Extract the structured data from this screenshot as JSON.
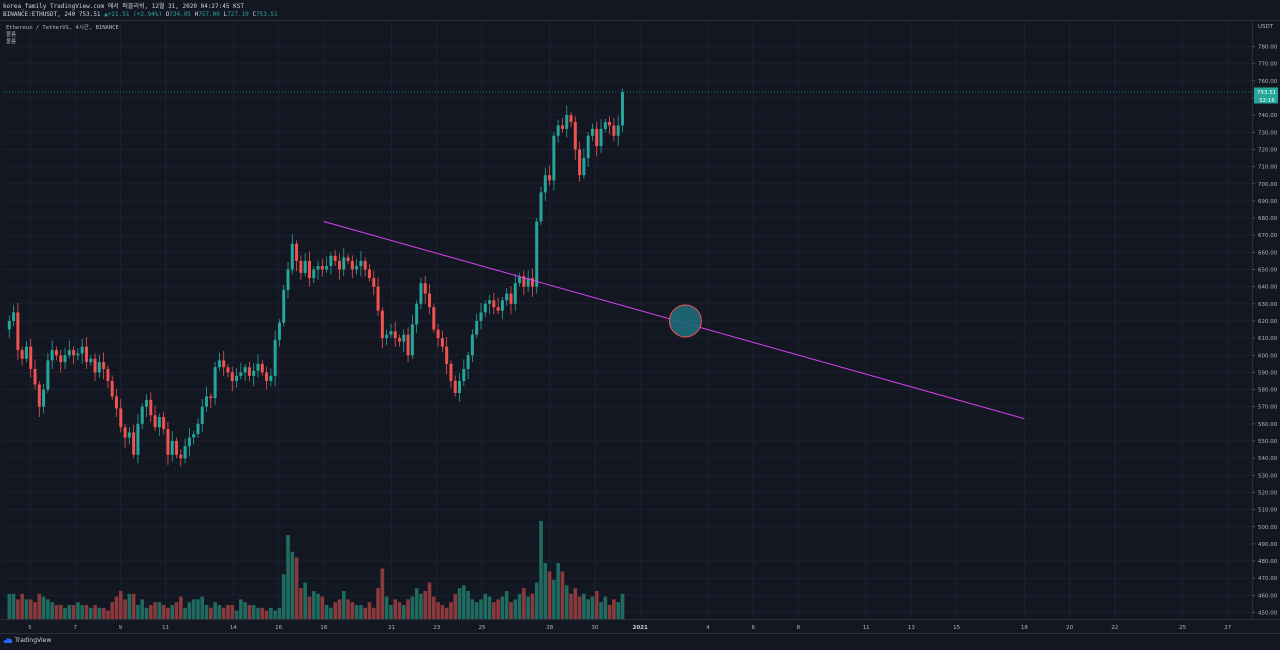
{
  "header": {
    "publisher_line": "korea_family TradingView.com 에서 퍼블리쉬, 12월 31, 2020 04:27:45 KST",
    "symbol_full": "BINANCE:ETHUSDT, 240",
    "last": "753.51",
    "change": "+21.51 (+2.94%)",
    "o_label": "O",
    "o_value": "734.05",
    "h_label": "H",
    "h_value": "757.00",
    "l_label": "L",
    "l_value": "727.10",
    "c_label": "C",
    "c_value": "753.51"
  },
  "legend": {
    "title": "Ethereum / TetherUS, 4시간, BINANCE",
    "line2": "볼륨",
    "line3": "볼륨"
  },
  "axis": {
    "currency": "USDT",
    "price_badge": "753.51",
    "countdown_badge": "32:16"
  },
  "footer": {
    "brand": "TradingView"
  },
  "colors": {
    "background": "#131722",
    "up": "#26a69a",
    "down": "#ef5350",
    "trendline": "#e040fb",
    "highlight": "#1e6a7a"
  },
  "chart_data": {
    "type": "candlestick",
    "interval": "4h",
    "ylim": [
      443,
      787
    ],
    "y_ticks": [
      450,
      460,
      470,
      480,
      490,
      500,
      510,
      520,
      530,
      540,
      550,
      560,
      570,
      580,
      590,
      600,
      610,
      620,
      630,
      640,
      650,
      660,
      670,
      680,
      690,
      700,
      710,
      720,
      730,
      740,
      750,
      760,
      770,
      780
    ],
    "x_ticks": [
      "5",
      "7",
      "9",
      "11",
      "14",
      "16",
      "18",
      "21",
      "23",
      "25",
      "28",
      "30",
      "2021",
      "4",
      "6",
      "8",
      "11",
      "13",
      "15",
      "18",
      "20",
      "22",
      "25",
      "27"
    ],
    "path_points": [
      [
        0,
        615
      ],
      [
        1,
        620
      ],
      [
        2,
        625
      ],
      [
        3,
        603
      ],
      [
        4,
        598
      ],
      [
        5,
        605
      ],
      [
        6,
        592
      ],
      [
        7,
        583
      ],
      [
        8,
        570
      ],
      [
        9,
        580
      ],
      [
        10,
        597
      ],
      [
        11,
        603
      ],
      [
        12,
        600
      ],
      [
        13,
        596
      ],
      [
        14,
        600
      ],
      [
        15,
        603
      ],
      [
        16,
        600
      ],
      [
        17,
        601
      ],
      [
        18,
        605
      ],
      [
        19,
        596
      ],
      [
        20,
        598
      ],
      [
        21,
        590
      ],
      [
        22,
        596
      ],
      [
        23,
        592
      ],
      [
        24,
        585
      ],
      [
        25,
        576
      ],
      [
        26,
        569
      ],
      [
        27,
        558
      ],
      [
        28,
        552
      ],
      [
        29,
        555
      ],
      [
        30,
        542
      ],
      [
        31,
        560
      ],
      [
        32,
        570
      ],
      [
        33,
        574
      ],
      [
        34,
        565
      ],
      [
        35,
        558
      ],
      [
        36,
        564
      ],
      [
        37,
        557
      ],
      [
        38,
        542
      ],
      [
        39,
        550
      ],
      [
        40,
        542
      ],
      [
        41,
        540
      ],
      [
        42,
        547
      ],
      [
        43,
        552
      ],
      [
        44,
        554
      ],
      [
        45,
        560
      ],
      [
        46,
        570
      ],
      [
        47,
        576
      ],
      [
        48,
        575
      ],
      [
        49,
        593
      ],
      [
        50,
        597
      ],
      [
        51,
        593
      ],
      [
        52,
        590
      ],
      [
        53,
        585
      ],
      [
        54,
        588
      ],
      [
        55,
        590
      ],
      [
        56,
        593
      ],
      [
        57,
        588
      ],
      [
        58,
        591
      ],
      [
        59,
        595
      ],
      [
        60,
        590
      ],
      [
        61,
        585
      ],
      [
        62,
        588
      ],
      [
        63,
        609
      ],
      [
        64,
        619
      ],
      [
        65,
        638
      ],
      [
        66,
        650
      ],
      [
        67,
        665
      ],
      [
        68,
        655
      ],
      [
        69,
        648
      ],
      [
        70,
        655
      ],
      [
        71,
        645
      ],
      [
        72,
        650
      ],
      [
        73,
        652
      ],
      [
        74,
        650
      ],
      [
        75,
        652
      ],
      [
        76,
        658
      ],
      [
        77,
        655
      ],
      [
        78,
        650
      ],
      [
        79,
        657
      ],
      [
        80,
        655
      ],
      [
        81,
        650
      ],
      [
        82,
        652
      ],
      [
        83,
        655
      ],
      [
        84,
        650
      ],
      [
        85,
        645
      ],
      [
        86,
        640
      ],
      [
        87,
        626
      ],
      [
        88,
        610
      ],
      [
        89,
        612
      ],
      [
        90,
        614
      ],
      [
        91,
        610
      ],
      [
        92,
        608
      ],
      [
        93,
        612
      ],
      [
        94,
        600
      ],
      [
        95,
        618
      ],
      [
        96,
        630
      ],
      [
        97,
        642
      ],
      [
        98,
        636
      ],
      [
        99,
        628
      ],
      [
        100,
        615
      ],
      [
        101,
        610
      ],
      [
        102,
        605
      ],
      [
        103,
        595
      ],
      [
        104,
        585
      ],
      [
        105,
        578
      ],
      [
        106,
        585
      ],
      [
        107,
        592
      ],
      [
        108,
        600
      ],
      [
        109,
        612
      ],
      [
        110,
        620
      ],
      [
        111,
        625
      ],
      [
        112,
        630
      ],
      [
        113,
        632
      ],
      [
        114,
        628
      ],
      [
        115,
        626
      ],
      [
        116,
        632
      ],
      [
        117,
        636
      ],
      [
        118,
        630
      ],
      [
        119,
        642
      ],
      [
        120,
        646
      ],
      [
        121,
        640
      ],
      [
        122,
        645
      ],
      [
        123,
        640
      ],
      [
        124,
        678
      ],
      [
        125,
        695
      ],
      [
        126,
        705
      ],
      [
        127,
        702
      ],
      [
        128,
        728
      ],
      [
        129,
        734
      ],
      [
        130,
        732
      ],
      [
        131,
        740
      ],
      [
        132,
        736
      ],
      [
        133,
        720
      ],
      [
        134,
        705
      ],
      [
        135,
        715
      ],
      [
        136,
        728
      ],
      [
        137,
        732
      ],
      [
        138,
        722
      ],
      [
        139,
        732
      ],
      [
        140,
        736
      ],
      [
        141,
        734
      ],
      [
        142,
        728
      ],
      [
        143,
        734
      ],
      [
        144,
        753.51
      ]
    ],
    "volume_scale": [
      0,
      50
    ],
    "volume": [
      9,
      9,
      7,
      9,
      7,
      7,
      6,
      9,
      8,
      7,
      6,
      5,
      5,
      4,
      5,
      5,
      6,
      5,
      5,
      4,
      5,
      4,
      4,
      3,
      6,
      8,
      10,
      7,
      9,
      9,
      5,
      7,
      4,
      5,
      6,
      6,
      5,
      4,
      5,
      6,
      8,
      4,
      6,
      7,
      7,
      8,
      5,
      4,
      6,
      5,
      4,
      5,
      5,
      3,
      7,
      6,
      5,
      5,
      4,
      4,
      3,
      4,
      3,
      4,
      16,
      30,
      24,
      22,
      11,
      13,
      8,
      10,
      9,
      8,
      5,
      4,
      6,
      7,
      10,
      7,
      6,
      5,
      5,
      4,
      6,
      4,
      11,
      18,
      8,
      5,
      7,
      6,
      5,
      7,
      8,
      11,
      9,
      10,
      13,
      8,
      6,
      5,
      4,
      6,
      9,
      11,
      12,
      10,
      7,
      6,
      7,
      9,
      8,
      6,
      7,
      8,
      10,
      6,
      7,
      9,
      11,
      8,
      9,
      13,
      35,
      20,
      17,
      14,
      20,
      17,
      12,
      9,
      11,
      8,
      9,
      7,
      8,
      10,
      6,
      8,
      5,
      7,
      6,
      8,
      9
    ],
    "trendline": {
      "start": [
        "Dec 18",
        678
      ],
      "end": [
        "Jan 18",
        563
      ]
    },
    "annotation": {
      "type": "circle",
      "at": [
        "Jan 3",
        620
      ]
    }
  }
}
